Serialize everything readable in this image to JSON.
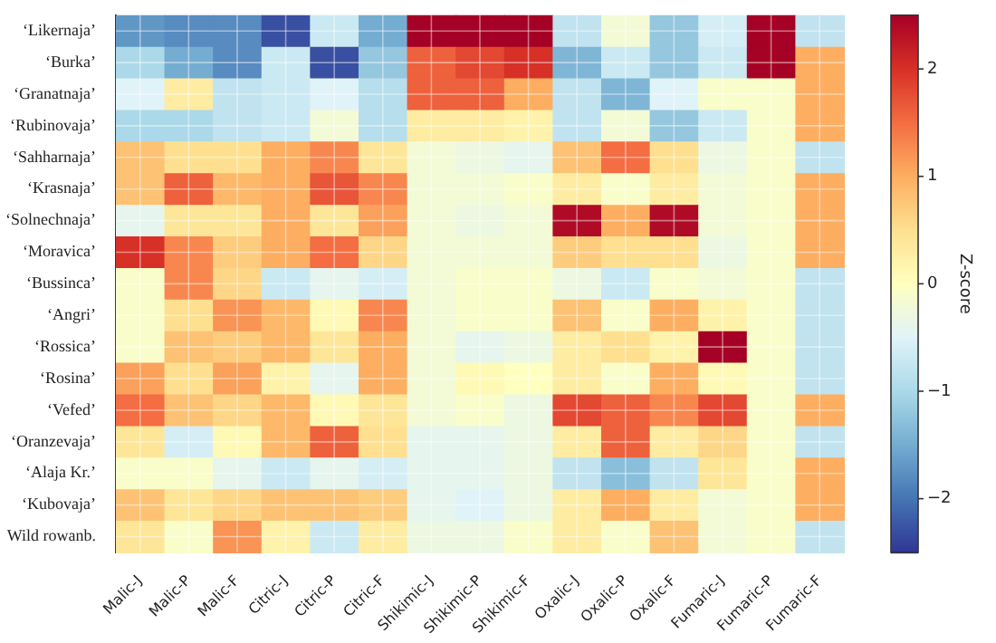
{
  "chart_data": {
    "type": "heatmap",
    "clabel": "Z-score",
    "grid": true,
    "categories": [
      "Malic-J",
      "Malic-P",
      "Malic-F",
      "Citric-J",
      "Citric-P",
      "Citric-F",
      "Shikimic-J",
      "Shikimic-P",
      "Shikimic-F",
      "Oxalic-J",
      "Oxalic-P",
      "Oxalic-F",
      "Fumaric-J",
      "Fumaric-P",
      "Fumaric-F"
    ],
    "y_categories": [
      "‘Likernaja’",
      "‘Burka’",
      "‘Granatnaja’",
      "‘Rubinovaja’",
      "‘Sahharnaja’",
      "‘Krasnaja’",
      "‘Solnechnaja’",
      "‘Moravica’",
      "‘Bussinca’",
      "‘Angri’",
      "‘Rossica’",
      "‘Rosina’",
      "‘Vefed’",
      "‘Oranzevaja’",
      "‘Alaja Kr.’",
      "‘Kubovaja’",
      "Wild rowanb."
    ],
    "cells": [
      [
        -1.7,
        -1.8,
        -1.8,
        -2.3,
        -0.7,
        -1.5,
        2.5,
        2.5,
        2.5,
        -0.8,
        -0.2,
        -1.2,
        -0.6,
        2.5,
        -0.8
      ],
      [
        -1.0,
        -1.5,
        -1.8,
        -0.7,
        -2.3,
        -1.2,
        1.6,
        1.8,
        2.0,
        -1.4,
        -0.7,
        -1.2,
        -0.7,
        2.5,
        1.0
      ],
      [
        -0.5,
        0.3,
        -0.8,
        -0.7,
        -0.5,
        -0.9,
        1.6,
        1.6,
        1.0,
        -0.8,
        -1.4,
        -0.5,
        -0.1,
        -0.1,
        1.0
      ],
      [
        -1.0,
        -1.0,
        -0.8,
        -0.7,
        -0.2,
        -0.9,
        0.3,
        0.3,
        0.2,
        -0.8,
        -0.2,
        -1.2,
        -0.7,
        -0.1,
        1.0
      ],
      [
        0.8,
        0.5,
        0.5,
        1.0,
        1.3,
        0.4,
        -0.2,
        -0.3,
        -0.4,
        0.8,
        1.5,
        0.5,
        -0.3,
        -0.1,
        -0.8
      ],
      [
        0.8,
        1.6,
        0.9,
        1.0,
        1.7,
        1.3,
        -0.2,
        -0.2,
        -0.1,
        0.3,
        -0.1,
        0.3,
        -0.2,
        -0.1,
        1.0
      ],
      [
        -0.4,
        0.4,
        0.4,
        1.0,
        0.4,
        1.1,
        -0.2,
        -0.3,
        -0.2,
        2.4,
        1.0,
        2.4,
        -0.2,
        -0.1,
        1.0
      ],
      [
        2.0,
        1.3,
        0.7,
        1.0,
        1.5,
        0.6,
        -0.2,
        -0.2,
        -0.2,
        0.7,
        0.5,
        0.5,
        -0.3,
        -0.1,
        1.0
      ],
      [
        -0.1,
        1.3,
        0.6,
        -0.7,
        -0.4,
        -0.6,
        -0.2,
        -0.1,
        -0.1,
        -0.3,
        -0.7,
        -0.1,
        -0.2,
        -0.1,
        -0.8
      ],
      [
        -0.1,
        0.5,
        1.2,
        0.9,
        0.1,
        1.3,
        -0.2,
        -0.1,
        -0.1,
        0.8,
        -0.1,
        1.0,
        0.2,
        -0.1,
        -0.8
      ],
      [
        -0.1,
        0.8,
        0.7,
        0.9,
        0.4,
        1.0,
        -0.2,
        -0.4,
        -0.3,
        0.3,
        0.5,
        0.2,
        2.5,
        -0.1,
        -0.8
      ],
      [
        1.1,
        0.5,
        1.1,
        0.2,
        -0.4,
        1.0,
        -0.2,
        0.1,
        0.0,
        0.3,
        -0.1,
        1.0,
        0.1,
        -0.1,
        -0.8
      ],
      [
        1.5,
        0.8,
        0.6,
        0.9,
        0.1,
        0.4,
        -0.2,
        -0.1,
        -0.3,
        1.8,
        1.6,
        1.3,
        1.8,
        -0.1,
        1.0
      ],
      [
        0.4,
        -0.6,
        0.1,
        0.9,
        1.6,
        0.5,
        -0.4,
        -0.4,
        -0.3,
        0.3,
        1.6,
        0.3,
        0.6,
        -0.1,
        -0.8
      ],
      [
        -0.1,
        -0.1,
        -0.4,
        -0.7,
        -0.4,
        -0.6,
        -0.4,
        -0.4,
        -0.3,
        -0.8,
        -1.3,
        -0.8,
        0.4,
        -0.1,
        1.0
      ],
      [
        0.8,
        0.4,
        0.6,
        0.8,
        0.8,
        0.7,
        -0.4,
        -0.5,
        -0.3,
        0.3,
        1.0,
        0.3,
        -0.2,
        -0.1,
        1.0
      ],
      [
        0.4,
        -0.1,
        1.2,
        0.2,
        -0.7,
        0.3,
        -0.3,
        -0.3,
        -0.1,
        0.3,
        -0.1,
        0.8,
        -0.2,
        -0.1,
        -0.8
      ]
    ],
    "clim": [
      -2.5,
      2.5
    ],
    "cticks": [
      -2,
      -1,
      0,
      1,
      2
    ]
  }
}
